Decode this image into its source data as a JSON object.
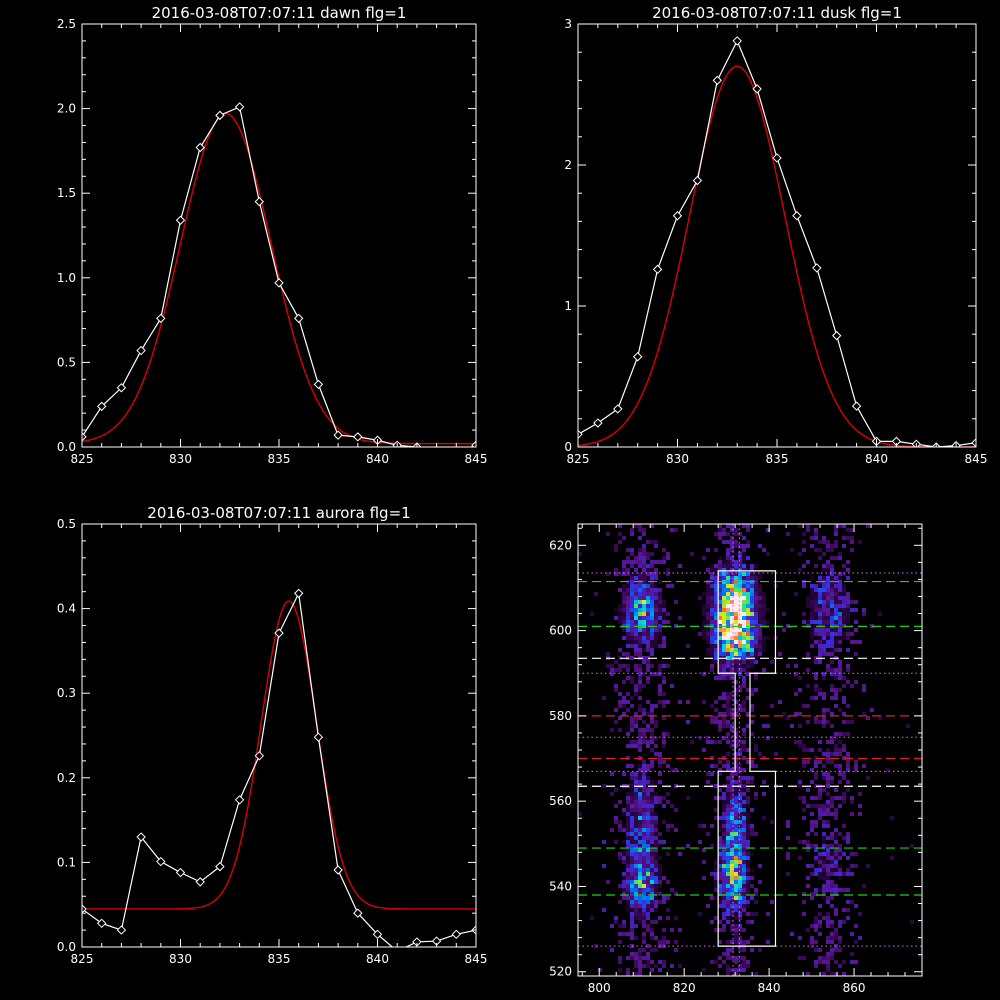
{
  "colors": {
    "background": "#000000",
    "axes": "#ffffff",
    "data_line": "#ffffff",
    "fit_line": "#dd0000",
    "line_green": "#22cc22",
    "line_red": "#dd2222",
    "line_white": "#ffffff",
    "line_magenta": "#d070f0"
  },
  "chart_data": [
    {
      "type": "line",
      "title": "2016-03-08T07:07:11 dawn flg=1",
      "xlabel": "",
      "ylabel": "",
      "xlim": [
        825,
        845
      ],
      "ylim": [
        0,
        2.5
      ],
      "xticks": [
        "825",
        "830",
        "835",
        "840",
        "845"
      ],
      "yticks": [
        "0.0",
        "0.5",
        "1.0",
        "1.5",
        "2.0",
        "2.5"
      ],
      "series": [
        {
          "style": "white-diamonds",
          "x": [
            825,
            826,
            827,
            828,
            829,
            830,
            831,
            832,
            833,
            834,
            835,
            836,
            837,
            838,
            839,
            840,
            841,
            842,
            843,
            844,
            845
          ],
          "y": [
            0.06,
            0.24,
            0.35,
            0.57,
            0.76,
            1.34,
            1.77,
            1.96,
            2.01,
            1.45,
            0.97,
            0.76,
            0.37,
            0.07,
            0.06,
            0.04,
            0.01,
            0.0,
            -0.02,
            -0.03,
            0.01
          ]
        },
        {
          "style": "red-fit",
          "gauss": {
            "amp": 1.95,
            "center": 832.3,
            "sigma": 2.3,
            "offset": 0.02
          },
          "x_range": [
            825,
            845
          ]
        }
      ]
    },
    {
      "type": "line",
      "title": "2016-03-08T07:07:11 dusk flg=1",
      "xlabel": "",
      "ylabel": "",
      "xlim": [
        825,
        845
      ],
      "ylim": [
        0,
        3
      ],
      "xticks": [
        "825",
        "830",
        "835",
        "840",
        "845"
      ],
      "yticks": [
        "0",
        "1",
        "2",
        "3"
      ],
      "series": [
        {
          "style": "white-diamonds",
          "x": [
            825,
            826,
            827,
            828,
            829,
            830,
            831,
            832,
            833,
            834,
            835,
            836,
            837,
            838,
            839,
            840,
            841,
            842,
            843,
            844,
            845
          ],
          "y": [
            0.09,
            0.17,
            0.27,
            0.64,
            1.26,
            1.64,
            1.89,
            2.6,
            2.88,
            2.54,
            2.05,
            1.64,
            1.27,
            0.79,
            0.29,
            0.04,
            0.04,
            0.02,
            0.0,
            0.01,
            0.03
          ]
        },
        {
          "style": "red-fit",
          "gauss": {
            "amp": 2.7,
            "center": 833.0,
            "sigma": 2.4,
            "offset": 0.0
          },
          "x_range": [
            825,
            845
          ]
        }
      ]
    },
    {
      "type": "line",
      "title": "2016-03-08T07:07:11 aurora flg=1",
      "xlabel": "",
      "ylabel": "",
      "xlim": [
        825,
        845
      ],
      "ylim": [
        0,
        0.5
      ],
      "xticks": [
        "825",
        "830",
        "835",
        "840",
        "845"
      ],
      "yticks": [
        "0.0",
        "0.1",
        "0.2",
        "0.3",
        "0.4",
        "0.5"
      ],
      "series": [
        {
          "style": "white-diamonds",
          "x": [
            825,
            826,
            827,
            828,
            829,
            830,
            831,
            832,
            833,
            834,
            835,
            836,
            837,
            838,
            839,
            840,
            841,
            842,
            843,
            844,
            845
          ],
          "y": [
            0.045,
            0.028,
            0.02,
            0.13,
            0.101,
            0.088,
            0.077,
            0.095,
            0.174,
            0.226,
            0.371,
            0.418,
            0.248,
            0.091,
            0.04,
            0.015,
            -0.005,
            0.006,
            0.007,
            0.015,
            0.02
          ]
        },
        {
          "style": "red-fit",
          "gauss": {
            "amp": 0.364,
            "center": 835.5,
            "sigma": 1.4,
            "offset": 0.045
          },
          "x_range": [
            825,
            845
          ]
        }
      ]
    },
    {
      "type": "heatmap",
      "title": "",
      "xlabel": "",
      "ylabel": "",
      "xlim": [
        795,
        876
      ],
      "ylim": [
        519,
        625
      ],
      "xticks": [
        800,
        820,
        840,
        860
      ],
      "yticks": [
        520,
        540,
        560,
        580,
        600,
        620
      ],
      "columns": [
        {
          "x": 810,
          "width": 4
        },
        {
          "x": 832,
          "width": 3.5
        },
        {
          "x": 854,
          "width": 4
        }
      ],
      "blobs": [
        {
          "x": 832,
          "y": 604,
          "sx": 3.2,
          "sy": 6.0,
          "a": 1.0
        },
        {
          "x": 832,
          "y": 598,
          "sx": 3.0,
          "sy": 3.0,
          "a": 0.35
        },
        {
          "x": 831.5,
          "y": 542,
          "sx": 2.0,
          "sy": 5.0,
          "a": 0.55
        },
        {
          "x": 832,
          "y": 553,
          "sx": 1.8,
          "sy": 7.0,
          "a": 0.35
        },
        {
          "x": 810,
          "y": 605,
          "sx": 2.8,
          "sy": 5.0,
          "a": 0.45
        },
        {
          "x": 810,
          "y": 541,
          "sx": 2.4,
          "sy": 5.0,
          "a": 0.4
        },
        {
          "x": 810,
          "y": 556,
          "sx": 2.4,
          "sy": 8.0,
          "a": 0.22
        },
        {
          "x": 854,
          "y": 605,
          "sx": 3.2,
          "sy": 6.0,
          "a": 0.22
        },
        {
          "x": 854,
          "y": 545,
          "sx": 3.0,
          "sy": 7.0,
          "a": 0.1
        }
      ],
      "hlines": [
        {
          "y": 611.5,
          "style": "green-dashed"
        },
        {
          "y": 601,
          "style": "green-dashed"
        },
        {
          "y": 593.5,
          "style": "white-dashed"
        },
        {
          "y": 580,
          "style": "red-dashed"
        },
        {
          "y": 570,
          "style": "red-dashed"
        },
        {
          "y": 563.5,
          "style": "white-dashed"
        },
        {
          "y": 549,
          "style": "green-dashed"
        },
        {
          "y": 538,
          "style": "green-dashed"
        },
        {
          "y": 613.5,
          "style": "magenta-dotted"
        },
        {
          "y": 590,
          "style": "magenta-dotted"
        },
        {
          "y": 575,
          "style": "magenta-dotted"
        },
        {
          "y": 567,
          "style": "magenta-dotted"
        },
        {
          "y": 526,
          "style": "magenta-dotted"
        }
      ],
      "vlines": [
        {
          "x": 831.5,
          "style": "magenta-dotted"
        },
        {
          "x": 833,
          "style": "magenta-dotted"
        }
      ],
      "outline": {
        "top_box": {
          "x0": 828,
          "x1": 841.5,
          "y0": 590,
          "y1": 614
        },
        "bottom_box": {
          "x0": 828,
          "x1": 841.5,
          "y0": 526,
          "y1": 567
        },
        "neck": {
          "x0": 832,
          "x1": 835.5
        }
      }
    }
  ]
}
